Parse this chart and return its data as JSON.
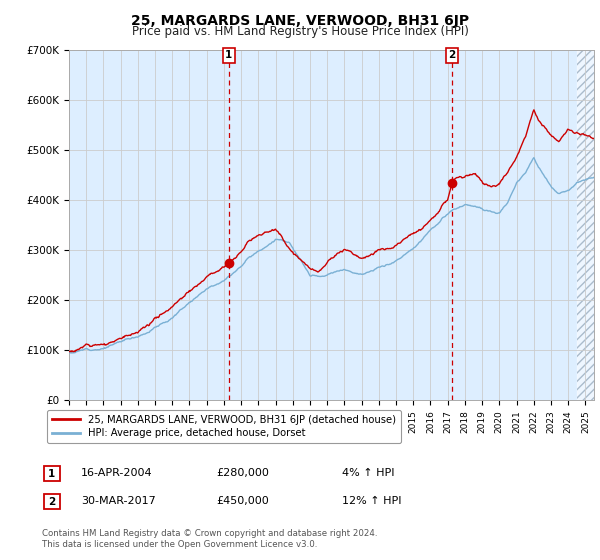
{
  "title": "25, MARGARDS LANE, VERWOOD, BH31 6JP",
  "subtitle": "Price paid vs. HM Land Registry's House Price Index (HPI)",
  "legend_line1": "25, MARGARDS LANE, VERWOOD, BH31 6JP (detached house)",
  "legend_line2": "HPI: Average price, detached house, Dorset",
  "sale1_date": "16-APR-2004",
  "sale1_price": "£280,000",
  "sale1_hpi": "4% ↑ HPI",
  "sale1_year": 2004.29,
  "sale1_value": 280000,
  "sale2_date": "30-MAR-2017",
  "sale2_price": "£450,000",
  "sale2_hpi": "12% ↑ HPI",
  "sale2_year": 2017.25,
  "sale2_value": 450000,
  "ylim": [
    0,
    700000
  ],
  "xlim_start": 1995.0,
  "xlim_end": 2025.5,
  "hatch_start": 2024.5,
  "background_color": "#ffffff",
  "plot_bg_color": "#ddeeff",
  "grid_color": "#cccccc",
  "red_line_color": "#cc0000",
  "blue_line_color": "#7ab0d4",
  "dashed_line_color": "#cc0000",
  "footer": "Contains HM Land Registry data © Crown copyright and database right 2024.\nThis data is licensed under the Open Government Licence v3.0.",
  "yticks": [
    0,
    100000,
    200000,
    300000,
    400000,
    500000,
    600000,
    700000
  ],
  "ytick_labels": [
    "£0",
    "£100K",
    "£200K",
    "£300K",
    "£400K",
    "£500K",
    "£600K",
    "£700K"
  ],
  "xticks": [
    1995,
    1996,
    1997,
    1998,
    1999,
    2000,
    2001,
    2002,
    2003,
    2004,
    2005,
    2006,
    2007,
    2008,
    2009,
    2010,
    2011,
    2012,
    2013,
    2014,
    2015,
    2016,
    2017,
    2018,
    2019,
    2020,
    2021,
    2022,
    2023,
    2024,
    2025
  ]
}
